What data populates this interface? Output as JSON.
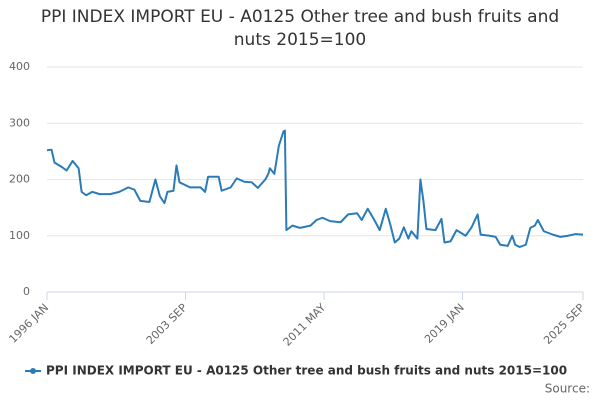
{
  "chart_data": {
    "type": "line",
    "title": "PPI INDEX IMPORT EU - A0125 Other tree and bush fruits and nuts 2015=100",
    "source": "Source:",
    "x": [
      "1996 JAN",
      "1996 APR",
      "1996 JUN",
      "1996 NOV",
      "1997 FEB",
      "1997 JUN",
      "1997 OCT",
      "1997 DEC",
      "1998 MAR",
      "1998 JUL",
      "1998 DEC",
      "1999 JUL",
      "2000 JAN",
      "2000 JUL",
      "2000 NOV",
      "2001 MAR",
      "2001 SEP",
      "2002 JAN",
      "2002 APR",
      "2002 JUL",
      "2002 SEP",
      "2003 JAN",
      "2003 MAR",
      "2003 MAY",
      "2003 DEC",
      "2004 JUL",
      "2004 OCT",
      "2004 DEC",
      "2005 JUL",
      "2005 SEP",
      "2006 MAR",
      "2006 JUL",
      "2006 DEC",
      "2007 MAY",
      "2007 SEP",
      "2008 FEB",
      "2008 APR",
      "2008 MAY",
      "2008 AUG",
      "2008 NOV",
      "2009 FEB",
      "2009 MAR",
      "2009 APR",
      "2009 AUG",
      "2010 JAN",
      "2010 AUG",
      "2010 DEC",
      "2011 APR",
      "2011 SEP",
      "2012 APR",
      "2012 SEP",
      "2013 MAR",
      "2013 JUN",
      "2013 OCT",
      "2014 FEB",
      "2014 JUN",
      "2014 OCT",
      "2015 JAN",
      "2015 APR",
      "2015 JUL",
      "2015 OCT",
      "2016 JAN",
      "2016 MAR",
      "2016 JUL",
      "2016 SEP",
      "2016 NOV",
      "2017 JAN",
      "2017 JUL",
      "2017 NOV",
      "2018 JAN",
      "2018 MAY",
      "2018 SEP",
      "2019 MAR",
      "2019 JUL",
      "2019 NOV",
      "2020 JAN",
      "2020 JUL",
      "2020 NOV",
      "2021 FEB",
      "2021 JUL",
      "2021 OCT",
      "2021 DEC",
      "2022 MAR",
      "2022 JUL",
      "2022 OCT",
      "2023 JAN",
      "2023 MAR",
      "2023 JUL",
      "2024 JAN",
      "2024 JUN",
      "2024 NOV",
      "2025 APR",
      "2025 SEP"
    ],
    "series": [
      {
        "name": "PPI INDEX IMPORT EU - A0125 Other tree and bush fruits and nuts 2015=100",
        "color": "#2b7bb9",
        "values": [
          252,
          253,
          230,
          222,
          216,
          233,
          220,
          178,
          172,
          178,
          174,
          174,
          178,
          186,
          182,
          162,
          160,
          200,
          170,
          158,
          178,
          180,
          225,
          195,
          186,
          186,
          178,
          205,
          205,
          180,
          186,
          202,
          196,
          195,
          185,
          200,
          210,
          220,
          210,
          260,
          285,
          287,
          110,
          118,
          114,
          118,
          128,
          132,
          126,
          124,
          138,
          140,
          128,
          148,
          130,
          110,
          148,
          120,
          88,
          95,
          115,
          95,
          108,
          95,
          200,
          162,
          112,
          110,
          130,
          88,
          90,
          110,
          100,
          115,
          138,
          102,
          100,
          98,
          84,
          82,
          100,
          84,
          80,
          84,
          114,
          118,
          128,
          108,
          102,
          98,
          100,
          103,
          102
        ]
      }
    ],
    "xlim": [
      "1996 JAN",
      "2025 SEP"
    ],
    "xticks": [
      "1996 JAN",
      "2003 SEP",
      "2011 MAY",
      "2019 JAN",
      "2025 SEP"
    ],
    "ylim": [
      0,
      400
    ],
    "yticks": [
      0,
      100,
      200,
      300,
      400
    ],
    "grid": true
  }
}
